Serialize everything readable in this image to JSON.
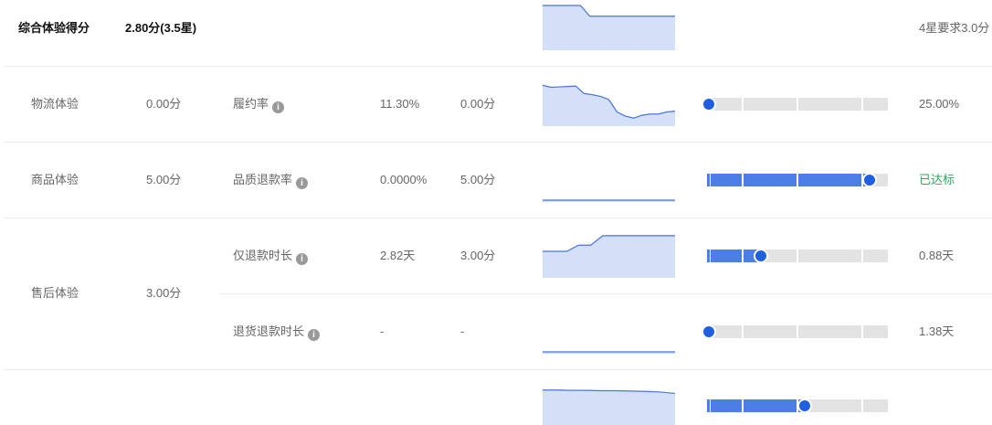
{
  "summary": {
    "label": "综合体验得分",
    "score": "2.80分(3.5星)",
    "target": "4星要求3.0分",
    "trend": [
      1,
      1,
      1,
      1,
      1,
      0.75,
      0.75,
      0.75,
      0.75,
      0.75,
      0.75,
      0.75,
      0.75,
      0.75,
      0.75
    ]
  },
  "categories": [
    {
      "name": "物流体验",
      "score": "0.00分"
    },
    {
      "name": "商品体验",
      "score": "5.00分"
    },
    {
      "name": "售后体验",
      "score": "3.00分"
    }
  ],
  "metrics": [
    {
      "name": "履约率",
      "value": "11.30%",
      "score": "0.00分",
      "target": "25.00%",
      "target_color": "#666666",
      "progress": 0,
      "trend": [
        0.95,
        0.9,
        0.91,
        0.92,
        0.93,
        0.75,
        0.72,
        0.68,
        0.6,
        0.3,
        0.2,
        0.15,
        0.22,
        0.25,
        0.25,
        0.3,
        0.32
      ]
    },
    {
      "name": "品质退款率",
      "value": "0.0000%",
      "score": "5.00分",
      "target": "已达标",
      "target_color": "#2aa760",
      "progress": 0.9,
      "trend": [
        0,
        0,
        0,
        0,
        0,
        0,
        0,
        0,
        0,
        0
      ]
    },
    {
      "name": "仅退款时长",
      "value": "2.82天",
      "score": "3.00分",
      "target": "0.88天",
      "target_color": "#666666",
      "progress": 0.3,
      "trend": [
        0.6,
        0.6,
        0.6,
        0.75,
        0.75,
        0.98,
        0.98,
        0.98,
        0.98,
        0.98,
        0.98,
        0.98
      ]
    },
    {
      "name": "退货退款时长",
      "value": "-",
      "score": "-",
      "target": "1.38天",
      "target_color": "#666666",
      "progress": 0,
      "trend": [
        0,
        0,
        0,
        0,
        0,
        0,
        0,
        0,
        0,
        0
      ]
    }
  ],
  "partial_row": {
    "progress": 0.54,
    "trend": [
      0.98,
      0.98,
      0.97,
      0.97,
      0.96,
      0.96,
      0.95,
      0.94,
      0.92,
      0.88
    ]
  },
  "colors": {
    "accent": "#1f5fe0",
    "fill": "#d3e0f8",
    "line": "#4a74d8",
    "segment_filled": "#4b7fe6"
  }
}
